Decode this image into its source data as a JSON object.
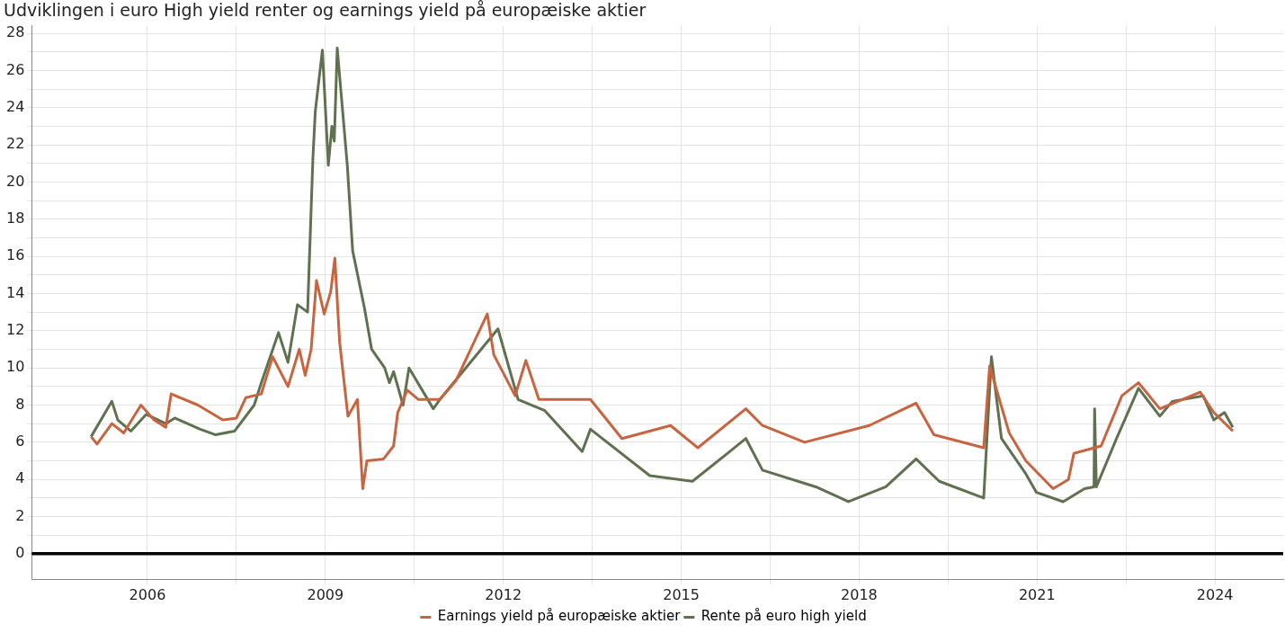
{
  "chart_data": {
    "type": "line",
    "title": "Udviklingen i euro High yield renter og earnings yield på europæiske aktier",
    "xlim": [
      2004.05,
      2025.15
    ],
    "xticks": [
      2006,
      {
        "value": 2007.5,
        "label": null
      },
      2009,
      {
        "value": 2010.5,
        "label": null
      },
      2012,
      {
        "value": 2013.5,
        "label": null
      },
      2015,
      {
        "value": 2016.5,
        "label": null
      },
      2018,
      {
        "value": 2019.5,
        "label": null
      },
      2021,
      {
        "value": 2022.5,
        "label": null
      },
      2024
    ],
    "ylim": [
      -1.4,
      28.4
    ],
    "yticks": [
      0,
      {
        "value": 1,
        "label": null
      },
      2,
      {
        "value": 3,
        "label": null
      },
      4,
      {
        "value": 5,
        "label": null
      },
      6,
      {
        "value": 7,
        "label": null
      },
      8,
      {
        "value": 9,
        "label": null
      },
      10,
      {
        "value": 11,
        "label": null
      },
      12,
      {
        "value": 13,
        "label": null
      },
      14,
      {
        "value": 15,
        "label": null
      },
      16,
      {
        "value": 17,
        "label": null
      },
      18,
      {
        "value": 19,
        "label": null
      },
      20,
      {
        "value": 21,
        "label": null
      },
      22,
      {
        "value": 23,
        "label": null
      },
      24,
      {
        "value": 25,
        "label": null
      },
      26,
      {
        "value": 27,
        "label": null
      },
      28
    ],
    "grid": true,
    "legend": "bottom",
    "marker": "none",
    "line_style": "solid",
    "ref_lines": [
      {
        "axis": "y",
        "value": 0,
        "color": "#000000"
      }
    ],
    "series": [
      {
        "name": "Earnings yield på europæiske aktier",
        "color": "#c8643f",
        "x": [
          2005.05,
          2005.15,
          2005.4,
          2005.6,
          2005.89,
          2006.11,
          2006.31,
          2006.4,
          2006.85,
          2007.27,
          2007.5,
          2007.66,
          2007.92,
          2008.11,
          2008.37,
          2008.56,
          2008.66,
          2008.76,
          2008.85,
          2008.98,
          2009.09,
          2009.16,
          2009.24,
          2009.38,
          2009.54,
          2009.63,
          2009.7,
          2009.98,
          2010.15,
          2010.22,
          2010.38,
          2010.57,
          2010.93,
          2011.2,
          2011.73,
          2011.84,
          2012.2,
          2012.38,
          2012.6,
          2013.47,
          2014.0,
          2014.82,
          2015.28,
          2016.09,
          2016.37,
          2017.08,
          2018.17,
          2018.96,
          2019.26,
          2020.1,
          2020.2,
          2020.53,
          2020.81,
          2021.27,
          2021.53,
          2021.62,
          2022.08,
          2022.43,
          2022.71,
          2023.07,
          2023.75,
          2023.98,
          2024.3
        ],
        "values": [
          6.3,
          5.9,
          7.0,
          6.5,
          8.0,
          7.2,
          6.8,
          8.6,
          8.0,
          7.2,
          7.3,
          8.4,
          8.6,
          10.6,
          9.0,
          11.0,
          9.6,
          11.0,
          14.7,
          12.9,
          14.1,
          15.9,
          11.4,
          7.4,
          8.3,
          3.5,
          5.0,
          5.1,
          5.8,
          7.6,
          8.8,
          8.3,
          8.3,
          9.3,
          12.9,
          10.7,
          8.5,
          10.4,
          8.3,
          8.3,
          6.2,
          6.9,
          5.7,
          7.8,
          6.9,
          6.0,
          6.9,
          8.1,
          6.4,
          5.7,
          10.1,
          6.5,
          5.0,
          3.5,
          4.0,
          5.4,
          5.8,
          8.5,
          9.2,
          7.8,
          8.7,
          7.6,
          6.6
        ]
      },
      {
        "name": "Rente på euro high yield",
        "color": "#5f7150",
        "x": [
          2005.05,
          2005.4,
          2005.5,
          2005.72,
          2005.98,
          2006.31,
          2006.46,
          2006.89,
          2007.15,
          2007.47,
          2007.8,
          2007.92,
          2008.21,
          2008.37,
          2008.53,
          2008.7,
          2008.79,
          2008.83,
          2008.95,
          2009.05,
          2009.11,
          2009.15,
          2009.2,
          2009.37,
          2009.46,
          2009.66,
          2009.78,
          2010.0,
          2010.08,
          2010.15,
          2010.31,
          2010.41,
          2010.82,
          2010.93,
          2011.91,
          2012.25,
          2012.7,
          2013.33,
          2013.47,
          2014.47,
          2015.19,
          2015.74,
          2016.09,
          2016.37,
          2017.27,
          2017.82,
          2018.45,
          2018.96,
          2019.35,
          2020.1,
          2020.23,
          2020.4,
          2020.81,
          2020.99,
          2021.44,
          2021.8,
          2021.96,
          2021.97,
          2022.0,
          2022.34,
          2022.71,
          2023.07,
          2023.28,
          2023.8,
          2023.98,
          2024.16,
          2024.3
        ],
        "values": [
          6.3,
          8.2,
          7.2,
          6.6,
          7.5,
          7.0,
          7.3,
          6.7,
          6.4,
          6.6,
          8.0,
          9.2,
          11.9,
          10.3,
          13.4,
          13.0,
          21.3,
          23.8,
          27.1,
          20.9,
          23.0,
          22.2,
          27.2,
          20.9,
          16.3,
          13.2,
          11.0,
          10.0,
          9.2,
          9.8,
          8.0,
          10.0,
          7.8,
          8.3,
          12.1,
          8.3,
          7.7,
          5.5,
          6.7,
          4.2,
          3.9,
          5.3,
          6.2,
          4.5,
          3.6,
          2.8,
          3.6,
          5.1,
          3.9,
          3.0,
          10.6,
          6.2,
          4.3,
          3.3,
          2.8,
          3.5,
          3.6,
          7.8,
          3.6,
          6.2,
          8.9,
          7.4,
          8.2,
          8.5,
          7.2,
          7.6,
          6.8
        ]
      }
    ]
  }
}
